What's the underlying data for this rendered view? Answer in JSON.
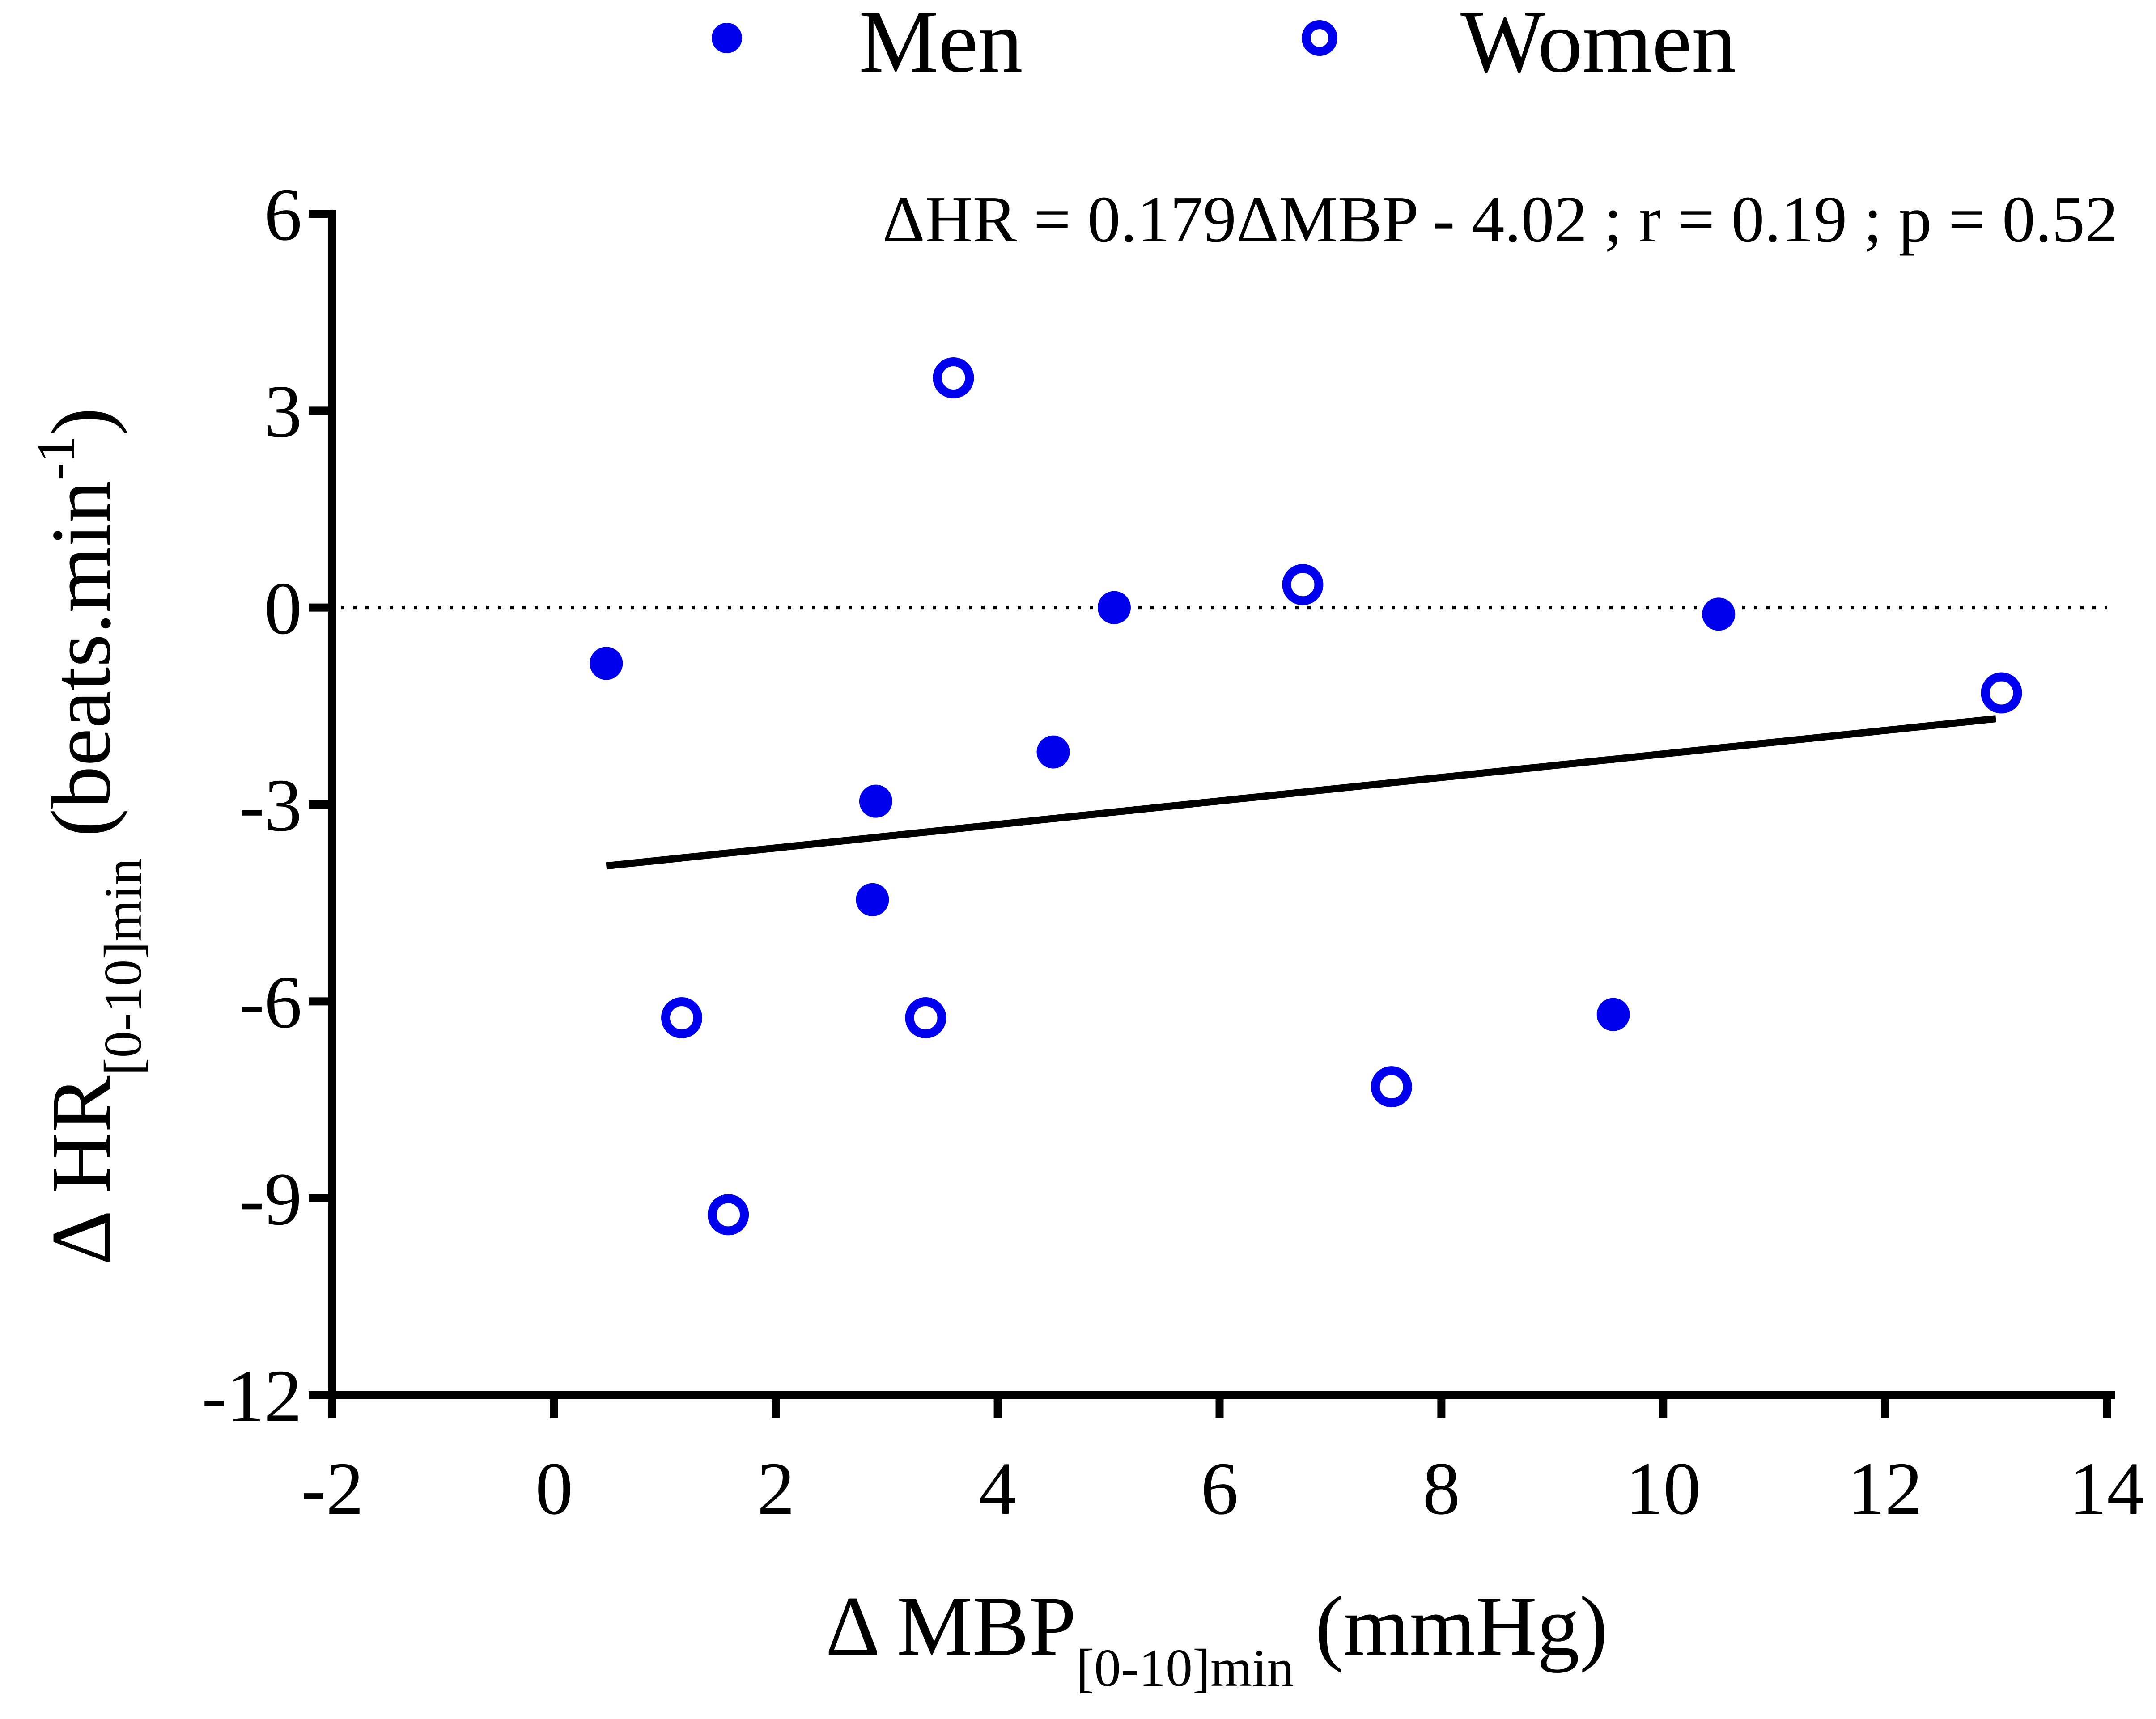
{
  "chart_data": {
    "type": "scatter",
    "xlabel": {
      "prefix": "Δ MBP",
      "subscript": "[0-10]min",
      "suffix": " (mmHg)"
    },
    "ylabel": {
      "prefix": "Δ HR",
      "subscript": "[0-10]min",
      "suffix_open": " (beats.min",
      "superscript": "-1",
      "suffix_close": ")"
    },
    "xlim": [
      -2,
      14
    ],
    "ylim": [
      -12,
      6
    ],
    "xticks": [
      -2,
      0,
      2,
      4,
      6,
      8,
      10,
      12,
      14
    ],
    "yticks": [
      -12,
      -9,
      -6,
      -3,
      0,
      3,
      6
    ],
    "legend": {
      "placement": "top",
      "entries": [
        {
          "name": "Men",
          "marker": "filled-circle"
        },
        {
          "name": "Women",
          "marker": "open-circle"
        }
      ]
    },
    "annotation": "ΔHR = 0.179ΔMBP - 4.02 ; r = 0.19 ; p = 0.52",
    "reference_line": {
      "y": 0,
      "style": "dotted"
    },
    "regression_line": {
      "slope": 0.179,
      "intercept": -4.02,
      "x_start": 0.47,
      "x_end": 13.0
    },
    "series": [
      {
        "name": "Men",
        "marker": "filled-circle",
        "color": "#0000ee",
        "points": [
          {
            "x": 0.47,
            "y": -0.85
          },
          {
            "x": 2.9,
            "y": -2.95
          },
          {
            "x": 2.87,
            "y": -4.45
          },
          {
            "x": 4.5,
            "y": -2.2
          },
          {
            "x": 5.05,
            "y": 0.0
          },
          {
            "x": 9.55,
            "y": -6.2
          },
          {
            "x": 10.5,
            "y": -0.1
          }
        ]
      },
      {
        "name": "Women",
        "marker": "open-circle",
        "color": "#0000ee",
        "points": [
          {
            "x": 1.15,
            "y": -6.25
          },
          {
            "x": 1.57,
            "y": -9.25
          },
          {
            "x": 3.35,
            "y": -6.25
          },
          {
            "x": 3.6,
            "y": 3.5
          },
          {
            "x": 6.75,
            "y": 0.35
          },
          {
            "x": 7.55,
            "y": -7.3
          },
          {
            "x": 13.05,
            "y": -1.3
          }
        ]
      }
    ]
  }
}
